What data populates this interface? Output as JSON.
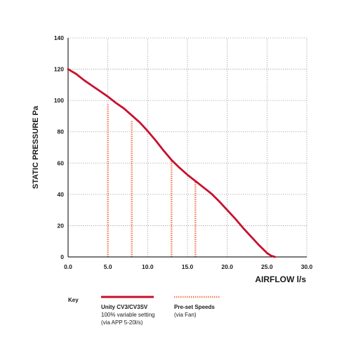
{
  "chart_data": {
    "type": "line",
    "xlabel": "AIRFLOW  l/s",
    "ylabel": "STATIC PRESSURE  Pa",
    "xlim": [
      0,
      30
    ],
    "ylim": [
      0,
      140
    ],
    "x_ticks": [
      0,
      5,
      10,
      15,
      20,
      25,
      30
    ],
    "x_tick_labels": [
      "0.0",
      "5.0",
      "10.0",
      "15.0",
      "20.0",
      "25.0",
      "30.0"
    ],
    "y_ticks": [
      0,
      20,
      40,
      60,
      80,
      100,
      120,
      140
    ],
    "y_tick_labels": [
      "0",
      "20",
      "40",
      "60",
      "80",
      "100",
      "120",
      "140"
    ],
    "grid": true,
    "series": [
      {
        "name": "Unity CV3/CV3SV",
        "style": "solid",
        "color": "#c8102e",
        "x": [
          0,
          1,
          2,
          3,
          4,
          5,
          6,
          7,
          8,
          9,
          10,
          11,
          12,
          13,
          14,
          15,
          16,
          17,
          18,
          19,
          20,
          21,
          22,
          23,
          24,
          25,
          25.5,
          26
        ],
        "y": [
          120,
          117,
          113,
          109.5,
          106,
          102.5,
          98.5,
          95,
          90.5,
          86,
          80.5,
          74.5,
          68,
          62,
          57,
          52.5,
          48.5,
          44.5,
          40.5,
          35.5,
          30,
          24.5,
          18.5,
          13,
          7.5,
          2.5,
          0.8,
          0
        ]
      }
    ],
    "preset_speeds": {
      "color": "#f08060",
      "lines": [
        {
          "x": 5,
          "y": 97.5
        },
        {
          "x": 8,
          "y": 87.5
        },
        {
          "x": 13,
          "y": 62
        },
        {
          "x": 16,
          "y": 49
        }
      ]
    },
    "legend": {
      "title": "Key",
      "entries": [
        {
          "label": "Unity CV3/CV3SV",
          "sublines": [
            "100% variable setting",
            "(via APP 5-20l/s)"
          ],
          "style": "solid"
        },
        {
          "label": "Pre-set Speeds",
          "sublines": [
            "(via Fan)"
          ],
          "style": "dotted"
        }
      ]
    }
  }
}
